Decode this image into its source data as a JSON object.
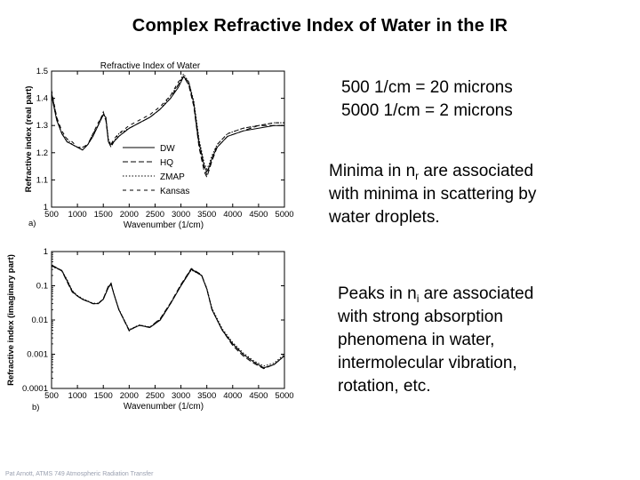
{
  "slide": {
    "title": "Complex Refractive Index of Water in the IR",
    "conversions": [
      "500 1/cm = 20 microns",
      "5000 1/cm = 2 microns"
    ],
    "minima_note": {
      "prefix": "Minima in n",
      "subscript": "r",
      "suffix": " are associated",
      "rest": [
        "with minima in scattering by",
        "water droplets."
      ]
    },
    "peaks_note": {
      "prefix": "Peaks in n",
      "subscript": "i",
      "suffix": " are associated",
      "rest": [
        "with strong absorption",
        "phenomena in water,",
        "intermolecular vibration,",
        "rotation, etc."
      ]
    },
    "footer": "Pat Arnott, ATMS 749 Atmospheric Radiation Transfer"
  },
  "chart_data": [
    {
      "type": "line",
      "panel_label": "a)",
      "title": "Refractive Index of Water",
      "xlabel": "Wavenumber (1/cm)",
      "ylabel": "Refractive index (real part)",
      "xlim": [
        500,
        5000
      ],
      "ylim": [
        1.0,
        1.5
      ],
      "xticks": [
        "500",
        "1000",
        "1500",
        "2000",
        "2500",
        "3000",
        "3500",
        "4000",
        "4500",
        "5000"
      ],
      "yticks": [
        "1",
        "1.1",
        "1.2",
        "1.3",
        "1.4",
        "1.5"
      ],
      "legend": [
        "DW",
        "HQ",
        "ZMAP",
        "Kansas"
      ],
      "x": [
        500,
        600,
        700,
        800,
        900,
        1000,
        1100,
        1200,
        1300,
        1400,
        1500,
        1550,
        1600,
        1650,
        1700,
        1800,
        2000,
        2200,
        2400,
        2600,
        2800,
        2950,
        3050,
        3150,
        3250,
        3350,
        3450,
        3500,
        3550,
        3600,
        3700,
        3900,
        4200,
        4500,
        4800,
        5000
      ],
      "series": [
        {
          "name": "DW",
          "values": [
            1.41,
            1.32,
            1.27,
            1.24,
            1.23,
            1.22,
            1.21,
            1.23,
            1.26,
            1.3,
            1.34,
            1.33,
            1.24,
            1.23,
            1.24,
            1.26,
            1.29,
            1.31,
            1.33,
            1.36,
            1.4,
            1.44,
            1.48,
            1.46,
            1.38,
            1.24,
            1.15,
            1.13,
            1.15,
            1.18,
            1.22,
            1.26,
            1.28,
            1.29,
            1.3,
            1.3
          ]
        },
        {
          "name": "HQ",
          "values": [
            1.42,
            1.33,
            1.27,
            1.24,
            1.23,
            1.22,
            1.21,
            1.23,
            1.27,
            1.3,
            1.35,
            1.32,
            1.24,
            1.22,
            1.24,
            1.26,
            1.29,
            1.31,
            1.33,
            1.36,
            1.4,
            1.45,
            1.48,
            1.45,
            1.37,
            1.22,
            1.13,
            1.11,
            1.14,
            1.17,
            1.22,
            1.26,
            1.28,
            1.3,
            1.3,
            1.3
          ]
        },
        {
          "name": "ZMAP",
          "values": [
            1.41,
            1.32,
            1.27,
            1.25,
            1.23,
            1.22,
            1.22,
            1.23,
            1.26,
            1.3,
            1.34,
            1.33,
            1.25,
            1.23,
            1.24,
            1.27,
            1.29,
            1.31,
            1.33,
            1.36,
            1.41,
            1.45,
            1.49,
            1.46,
            1.39,
            1.25,
            1.16,
            1.14,
            1.16,
            1.19,
            1.23,
            1.27,
            1.29,
            1.3,
            1.31,
            1.31
          ]
        },
        {
          "name": "Kansas",
          "values": [
            1.43,
            1.33,
            1.28,
            1.25,
            1.24,
            1.22,
            1.22,
            1.23,
            1.27,
            1.31,
            1.34,
            1.32,
            1.24,
            1.23,
            1.25,
            1.27,
            1.3,
            1.32,
            1.34,
            1.37,
            1.41,
            1.46,
            1.48,
            1.45,
            1.37,
            1.23,
            1.14,
            1.12,
            1.15,
            1.18,
            1.23,
            1.27,
            1.29,
            1.3,
            1.31,
            1.31
          ]
        }
      ]
    },
    {
      "type": "line",
      "panel_label": "b)",
      "title": "",
      "xlabel": "Wavenumber (1/cm)",
      "ylabel": "Refractive index (imaginary part)",
      "yscale": "log",
      "xlim": [
        500,
        5000
      ],
      "ylim": [
        0.0001,
        1
      ],
      "xticks": [
        "500",
        "1000",
        "1500",
        "2000",
        "2500",
        "3000",
        "3500",
        "4000",
        "4500",
        "5000"
      ],
      "yticks": [
        "0.0001",
        "0.001",
        "0.01",
        "0.1",
        "1"
      ],
      "x": [
        500,
        600,
        700,
        800,
        900,
        1000,
        1100,
        1200,
        1300,
        1400,
        1500,
        1600,
        1650,
        1700,
        1800,
        2000,
        2100,
        2200,
        2400,
        2600,
        2800,
        3000,
        3200,
        3400,
        3500,
        3600,
        3800,
        4000,
        4200,
        4400,
        4600,
        4800,
        5000
      ],
      "series": [
        {
          "name": "DW",
          "values": [
            0.38,
            0.33,
            0.28,
            0.14,
            0.07,
            0.05,
            0.04,
            0.035,
            0.03,
            0.03,
            0.04,
            0.09,
            0.11,
            0.06,
            0.02,
            0.005,
            0.006,
            0.007,
            0.006,
            0.01,
            0.03,
            0.1,
            0.3,
            0.2,
            0.08,
            0.02,
            0.005,
            0.002,
            0.001,
            0.0006,
            0.0004,
            0.0005,
            0.0009
          ]
        },
        {
          "name": "HQ",
          "values": [
            0.4,
            0.34,
            0.27,
            0.13,
            0.065,
            0.05,
            0.04,
            0.035,
            0.03,
            0.03,
            0.042,
            0.1,
            0.12,
            0.06,
            0.02,
            0.0048,
            0.006,
            0.007,
            0.0062,
            0.011,
            0.032,
            0.11,
            0.32,
            0.21,
            0.08,
            0.02,
            0.005,
            0.0018,
            0.0009,
            0.00055,
            0.00038,
            0.0005,
            0.0009
          ]
        },
        {
          "name": "ZMAP",
          "values": [
            0.37,
            0.32,
            0.28,
            0.15,
            0.072,
            0.052,
            0.042,
            0.036,
            0.031,
            0.031,
            0.041,
            0.09,
            0.11,
            0.062,
            0.021,
            0.0052,
            0.0062,
            0.0072,
            0.0062,
            0.0105,
            0.031,
            0.1,
            0.29,
            0.2,
            0.085,
            0.022,
            0.0055,
            0.0022,
            0.0011,
            0.00065,
            0.00045,
            0.00055,
            0.001
          ]
        },
        {
          "name": "Kansas",
          "values": [
            0.39,
            0.33,
            0.27,
            0.14,
            0.068,
            0.05,
            0.041,
            0.035,
            0.03,
            0.03,
            0.04,
            0.095,
            0.115,
            0.06,
            0.02,
            0.005,
            0.006,
            0.007,
            0.006,
            0.01,
            0.03,
            0.105,
            0.31,
            0.2,
            0.08,
            0.02,
            0.005,
            0.002,
            0.001,
            0.0006,
            0.0004,
            0.0005,
            0.0009
          ]
        }
      ]
    }
  ]
}
